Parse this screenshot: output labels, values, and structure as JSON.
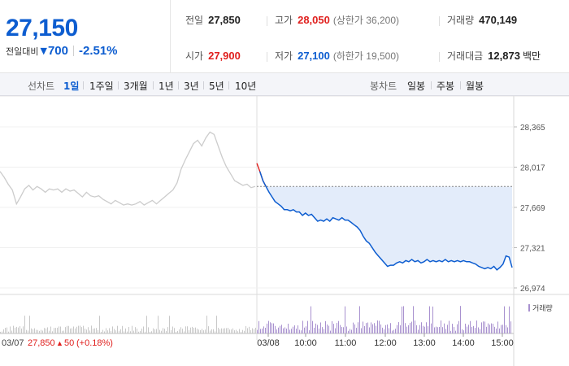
{
  "quote": {
    "price": "27,150",
    "change_label": "전일대비",
    "change_arrow": "▼",
    "change_value": "700",
    "change_rate": "-2.51%",
    "prev_close_label": "전일",
    "prev_close": "27,850",
    "high_label": "고가",
    "high": "28,050",
    "upper_limit": "(상한가 36,200)",
    "volume_label": "거래량",
    "volume": "470,149",
    "open_label": "시가",
    "open": "27,900",
    "low_label": "저가",
    "low": "27,100",
    "lower_limit": "(하한가 19,500)",
    "amount_label": "거래대금",
    "amount": "12,873",
    "amount_unit": "백만"
  },
  "tabs": {
    "line_chart_label": "선차트",
    "line_periods": [
      "1일",
      "1주일",
      "3개월",
      "1년",
      "3년",
      "5년",
      "10년"
    ],
    "active_period": "1일",
    "candle_chart_label": "봉차트",
    "candle_periods": [
      "일봉",
      "주봉",
      "월봉"
    ]
  },
  "colors": {
    "down": "#0d5dd0",
    "up": "#e0201e",
    "prev_day_line": "#cccccc",
    "fill": "#e3ecfa",
    "volume_today": "#a891cf",
    "volume_prev": "#c8c8c8"
  },
  "chart_data": {
    "type": "line",
    "y_ticks": [
      "28,365",
      "28,017",
      "27,669",
      "27,321",
      "26,974"
    ],
    "ylim": [
      26974,
      28365
    ],
    "reference_price": 27850,
    "x_ticks": [
      "03/08",
      "10:00",
      "11:00",
      "12:00",
      "13:00",
      "14:00",
      "15:00"
    ],
    "prev_day": {
      "date": "03/07",
      "close": "27,850",
      "change_arrow": "▲",
      "change": "50",
      "change_rate": "(+0.18%)",
      "values": [
        27980,
        27930,
        27870,
        27820,
        27700,
        27760,
        27830,
        27860,
        27820,
        27850,
        27830,
        27800,
        27830,
        27820,
        27830,
        27800,
        27830,
        27810,
        27820,
        27790,
        27760,
        27800,
        27770,
        27760,
        27770,
        27740,
        27720,
        27700,
        27730,
        27710,
        27690,
        27700,
        27690,
        27700,
        27720,
        27690,
        27710,
        27730,
        27700,
        27730,
        27760,
        27790,
        27820,
        27880,
        28000,
        28080,
        28150,
        28220,
        28250,
        28200,
        28270,
        28320,
        28300,
        28200,
        28100,
        28020,
        27960,
        27900,
        27880,
        27860,
        27870,
        27840,
        27850
      ]
    },
    "today": {
      "values": [
        28050,
        27980,
        27900,
        27850,
        27800,
        27760,
        27720,
        27700,
        27680,
        27650,
        27650,
        27640,
        27650,
        27630,
        27630,
        27600,
        27620,
        27600,
        27610,
        27580,
        27550,
        27560,
        27550,
        27570,
        27550,
        27580,
        27570,
        27560,
        27580,
        27560,
        27560,
        27540,
        27520,
        27500,
        27470,
        27420,
        27380,
        27360,
        27320,
        27280,
        27250,
        27220,
        27190,
        27160,
        27170,
        27170,
        27190,
        27200,
        27190,
        27210,
        27200,
        27220,
        27200,
        27210,
        27190,
        27200,
        27220,
        27200,
        27210,
        27200,
        27210,
        27200,
        27220,
        27200,
        27210,
        27200,
        27210,
        27200,
        27210,
        27200,
        27200,
        27190,
        27180,
        27160,
        27150,
        27140,
        27150,
        27140,
        27160,
        27130,
        27150,
        27180,
        27250,
        27240,
        27150
      ]
    }
  },
  "legend": {
    "volume_label": "거래량"
  }
}
